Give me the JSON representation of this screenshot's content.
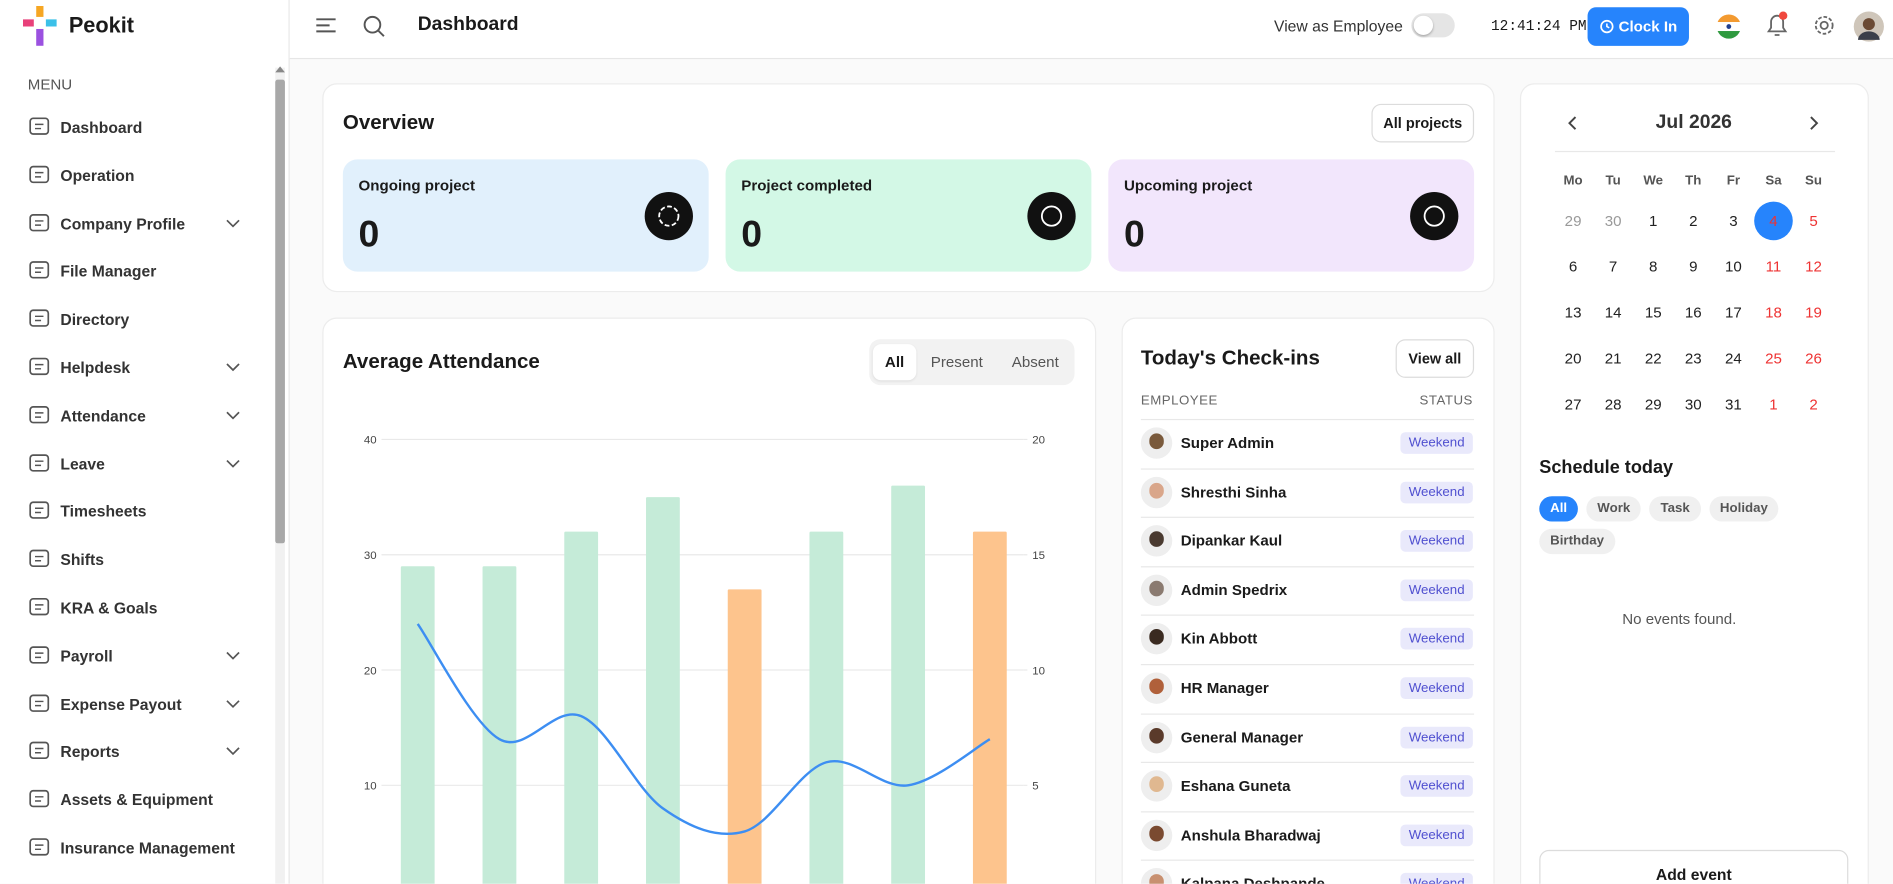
{
  "sidebar": {
    "brand": "Peokit",
    "menu_label": "MENU",
    "items": [
      {
        "label": "Dashboard",
        "submenu": false
      },
      {
        "label": "Operation",
        "submenu": false
      },
      {
        "label": "Company Profile",
        "submenu": true
      },
      {
        "label": "File Manager",
        "submenu": false
      },
      {
        "label": "Directory",
        "submenu": false
      },
      {
        "label": "Helpdesk",
        "submenu": true
      },
      {
        "label": "Attendance",
        "submenu": true
      },
      {
        "label": "Leave",
        "submenu": true
      },
      {
        "label": "Timesheets",
        "submenu": false
      },
      {
        "label": "Shifts",
        "submenu": false
      },
      {
        "label": "KRA & Goals",
        "submenu": false
      },
      {
        "label": "Payroll",
        "submenu": true
      },
      {
        "label": "Expense Payout",
        "submenu": true
      },
      {
        "label": "Reports",
        "submenu": true
      },
      {
        "label": "Assets & Equipment",
        "submenu": false
      },
      {
        "label": "Insurance Management",
        "submenu": false
      }
    ]
  },
  "topbar": {
    "title": "Dashboard",
    "view_as": "View as Employee",
    "time": "12:41:24 PM",
    "clock_in": "Clock In"
  },
  "overview": {
    "title": "Overview",
    "button": "All projects",
    "cards": [
      {
        "label": "Ongoing project",
        "value": 0,
        "color": "#e1f0fc"
      },
      {
        "label": "Project completed",
        "value": 0,
        "color": "#d3f8e6"
      },
      {
        "label": "Upcoming project",
        "value": 0,
        "color": "#f2e6fc"
      }
    ]
  },
  "attendance": {
    "title": "Average Attendance",
    "tabs": [
      "All",
      "Present",
      "Absent"
    ],
    "active_tab": 0,
    "chart": {
      "type": "bar",
      "categories": [
        null,
        null,
        null,
        null,
        null,
        null,
        null,
        null
      ],
      "ylim": [
        0,
        40
      ],
      "yticks": [
        10,
        20,
        30,
        40
      ],
      "y2lim": [
        0,
        20
      ],
      "y2ticks": [
        5,
        10,
        15,
        20
      ],
      "grid": true,
      "series": [
        {
          "type": "bar",
          "colors": [
            "#c5ebd8",
            "#c5ebd8",
            "#c5ebd8",
            "#c5ebd8",
            "#fdc48d",
            "#c5ebd8",
            "#c5ebd8",
            "#fdc48d"
          ],
          "values": [
            29,
            29,
            32,
            35,
            27,
            32,
            36,
            32
          ]
        },
        {
          "type": "line",
          "axis": "y2",
          "color": "#3d8ef2",
          "values": [
            12,
            7,
            8,
            4,
            3,
            6,
            5,
            7
          ]
        }
      ]
    }
  },
  "checkins": {
    "title": "Today's Check-ins",
    "button": "View all",
    "headers": [
      "EMPLOYEE",
      "STATUS"
    ],
    "rows": [
      [
        "Super Admin",
        "Weekend"
      ],
      [
        "Shresthi Sinha",
        "Weekend"
      ],
      [
        "Dipankar Kaul",
        "Weekend"
      ],
      [
        "Admin Spedrix",
        "Weekend"
      ],
      [
        "Kin Abbott",
        "Weekend"
      ],
      [
        "HR Manager",
        "Weekend"
      ],
      [
        "General Manager",
        "Weekend"
      ],
      [
        "Eshana Guneta",
        "Weekend"
      ],
      [
        "Anshula Bharadwaj",
        "Weekend"
      ],
      [
        "Kalpana Deshpande",
        "Weekend"
      ]
    ]
  },
  "calendar": {
    "month": "Jul 2026",
    "weekdays": [
      "Mo",
      "Tu",
      "We",
      "Th",
      "Fr",
      "Sa",
      "Su"
    ],
    "today": 4,
    "weeks": [
      [
        29,
        30,
        1,
        2,
        3,
        4,
        5
      ],
      [
        6,
        7,
        8,
        9,
        10,
        11,
        12
      ],
      [
        13,
        14,
        15,
        16,
        17,
        18,
        19
      ],
      [
        20,
        21,
        22,
        23,
        24,
        25,
        26
      ],
      [
        27,
        28,
        29,
        30,
        31,
        1,
        2
      ]
    ]
  },
  "schedule": {
    "title": "Schedule today",
    "filters": [
      "All",
      "Work",
      "Task",
      "Holiday",
      "Birthday"
    ],
    "empty": "No events found.",
    "add": "Add event"
  }
}
